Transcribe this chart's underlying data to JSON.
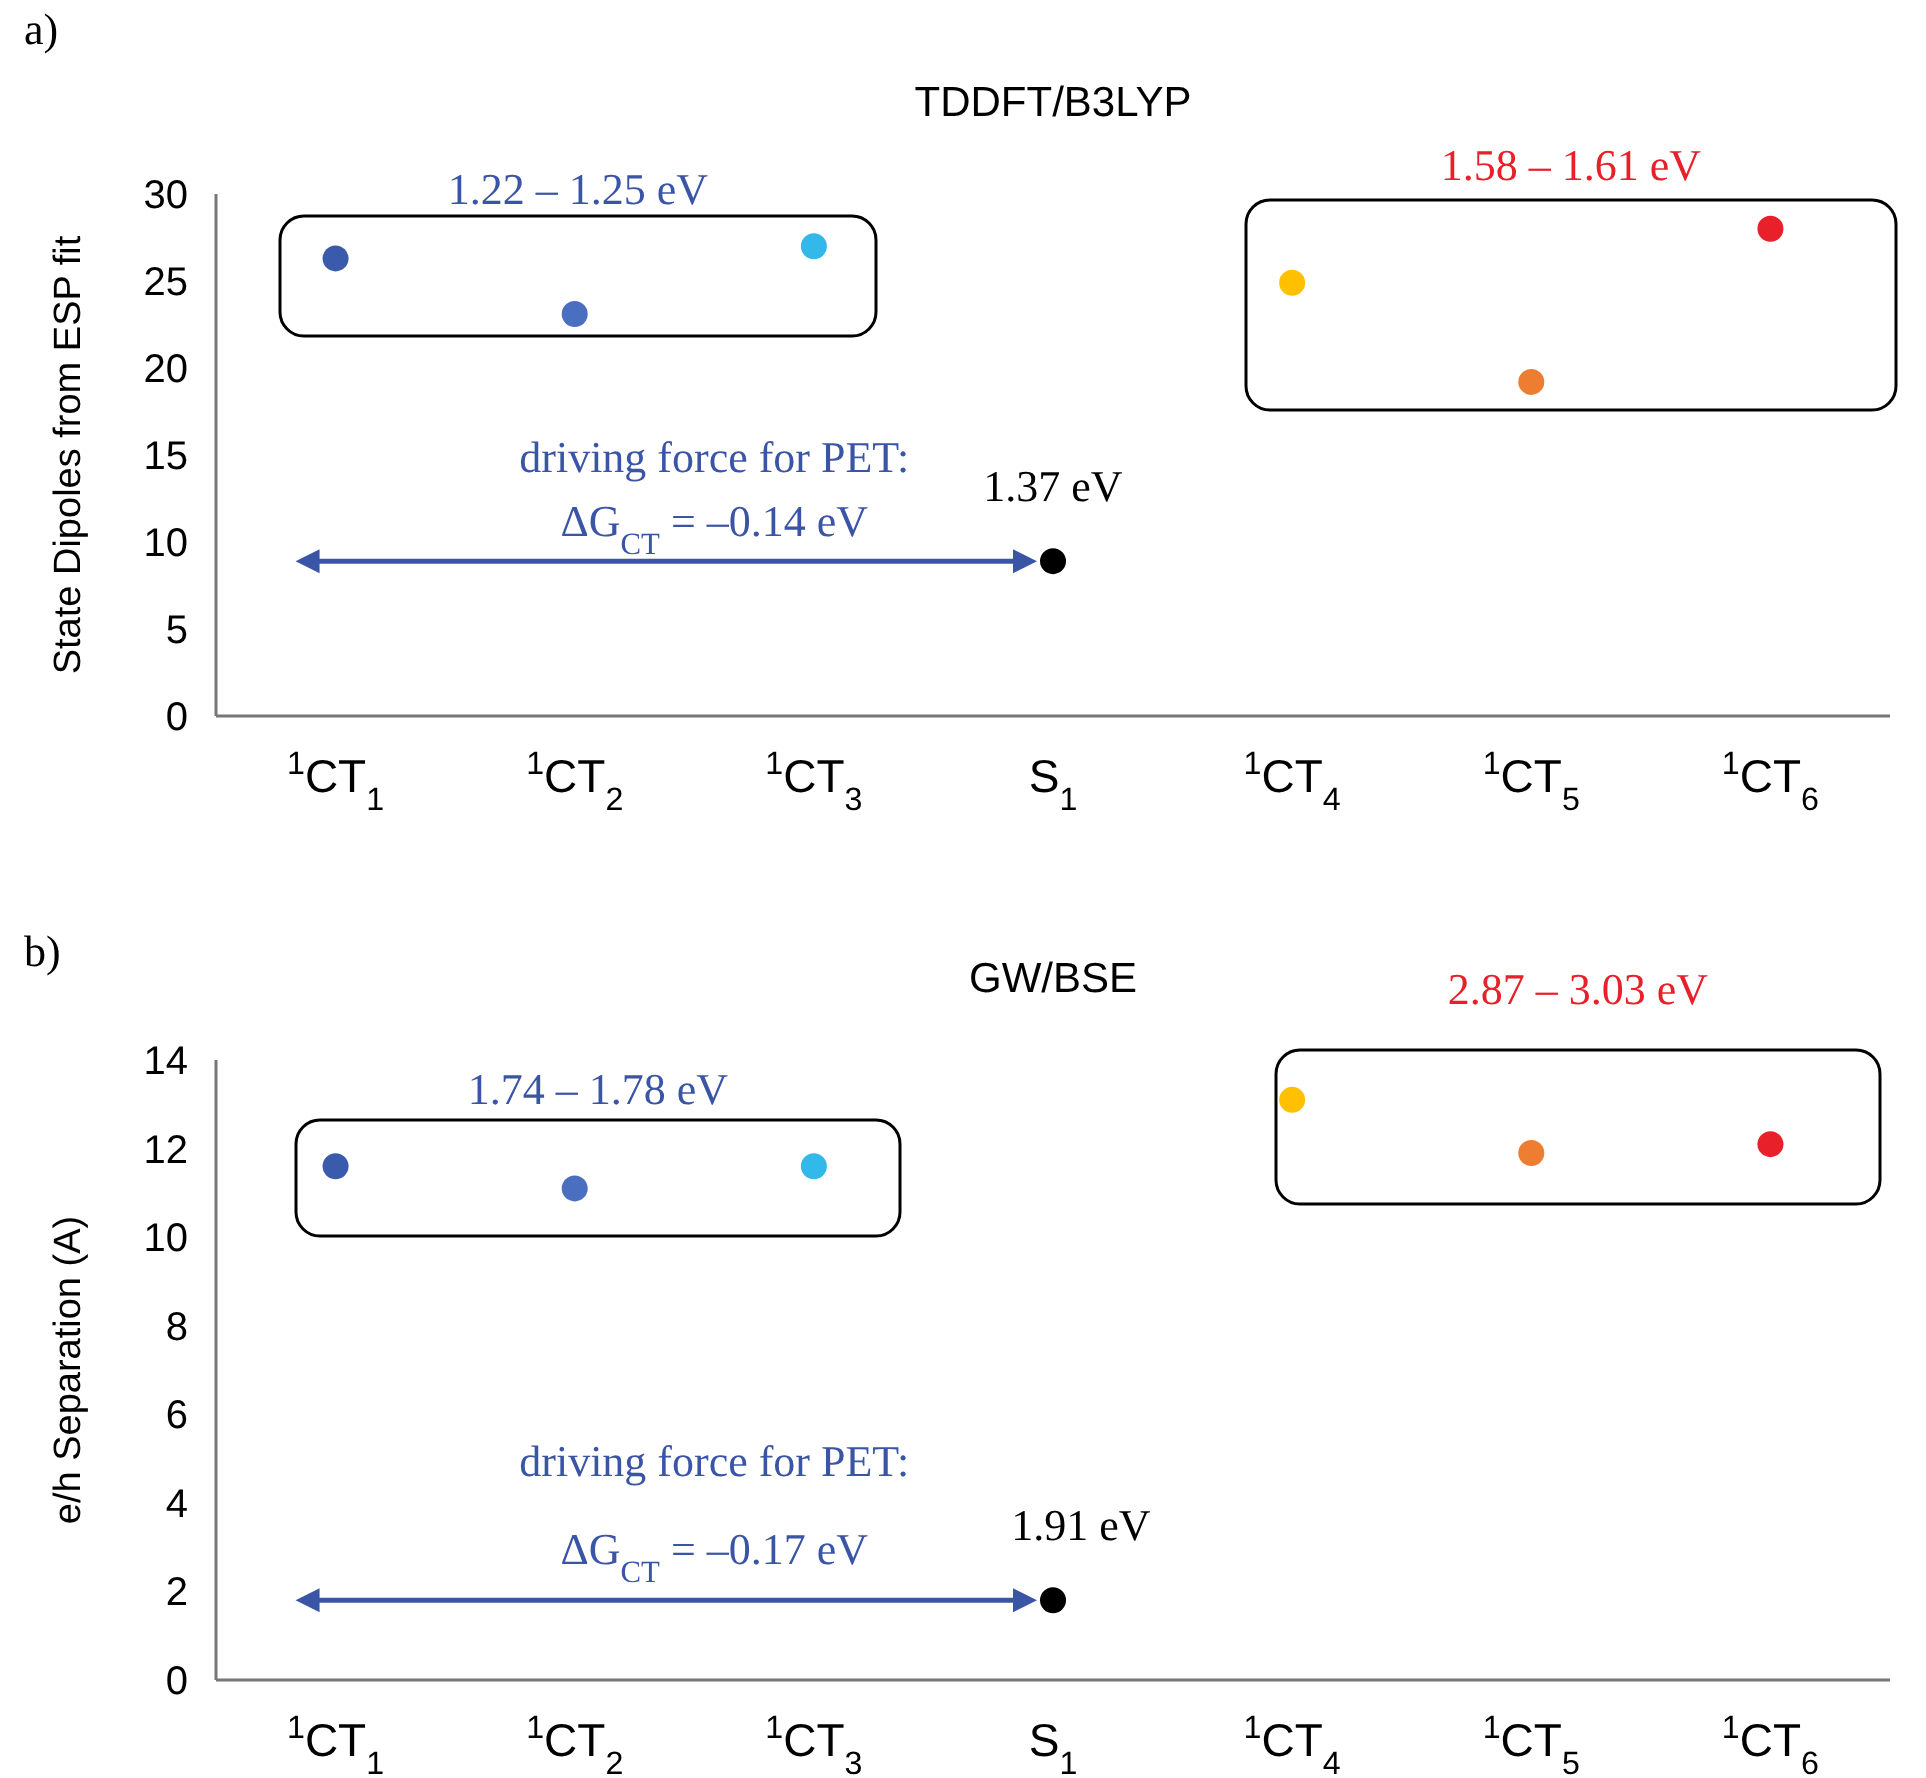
{
  "chart_data": [
    {
      "type": "scatter",
      "title": "TDDFT/B3LYP",
      "ylabel": "State Dipoles from ESP fit",
      "categories": [
        "$^{1}$CT$_{1}$",
        "$^{1}$CT$_{2}$",
        "$^{1}$CT$_{3}$",
        "S$_{1}$",
        "$^{1}$CT$_{4}$",
        "$^{1}$CT$_{5}$",
        "$^{1}$CT$_{6}$"
      ],
      "series": [
        {
          "values": [
            26.3,
            23.1,
            27.0,
            8.9,
            24.9,
            19.2,
            28.0
          ],
          "colors": [
            "#3a5bab",
            "#4a6fc0",
            "#33b8ea",
            "#000000",
            "#ffc000",
            "#ed7d31",
            "#e8202a"
          ]
        }
      ],
      "ylim": [
        0,
        30
      ],
      "yticks": [
        0,
        5,
        10,
        15,
        20,
        25,
        30
      ],
      "grid": false,
      "marker": "circle",
      "annotations": [
        "a)",
        "1.22 – 1.25 eV",
        "1.58 – 1.61 eV",
        "driving force for PET:",
        "ΔG$_{CT}$ = –0.14 eV",
        "1.37 eV"
      ]
    },
    {
      "type": "scatter",
      "title": "GW/BSE",
      "ylabel": "e/h Separation (A)",
      "categories": [
        "$^{1}$CT$_{1}$",
        "$^{1}$CT$_{2}$",
        "$^{1}$CT$_{3}$",
        "S$_{1}$",
        "$^{1}$CT$_{4}$",
        "$^{1}$CT$_{5}$",
        "$^{1}$CT$_{6}$"
      ],
      "series": [
        {
          "values": [
            11.6,
            11.1,
            11.6,
            1.8,
            13.1,
            11.9,
            12.1
          ],
          "colors": [
            "#3a5bab",
            "#4a6fc0",
            "#33b8ea",
            "#000000",
            "#ffc000",
            "#ed7d31",
            "#e8202a"
          ]
        }
      ],
      "ylim": [
        0,
        14
      ],
      "yticks": [
        0,
        2,
        4,
        6,
        8,
        10,
        12,
        14
      ],
      "grid": false,
      "marker": "circle",
      "annotations": [
        "b)",
        "1.74 – 1.78 eV",
        "2.87 – 3.03 eV",
        "driving force for PET:",
        "ΔG$_{CT}$ = –0.17 eV",
        "1.91 eV"
      ]
    }
  ]
}
